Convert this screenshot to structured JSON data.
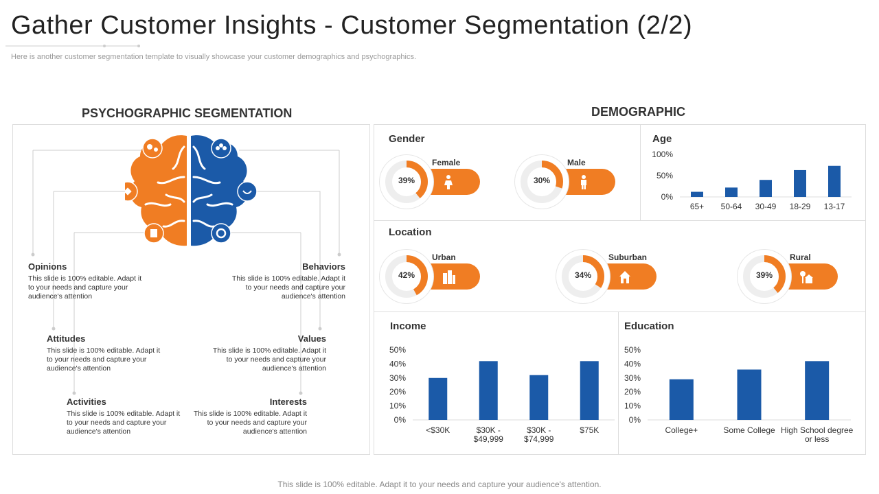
{
  "header": {
    "title": "Gather Customer Insights - Customer Segmentation (2/2)",
    "subtitle": "Here is another customer segmentation template to visually showcase your customer demographics and psychographics."
  },
  "psychographic": {
    "title": "PSYCHOGRAPHIC SEGMENTATION",
    "items": [
      {
        "name": "Opinions",
        "desc": "This slide is 100% editable. Adapt it to your needs and capture your audience's attention"
      },
      {
        "name": "Attitudes",
        "desc": "This slide is 100% editable. Adapt it to your needs and capture your audience's attention"
      },
      {
        "name": "Activities",
        "desc": "This slide is 100% editable. Adapt it to your needs and capture your audience's attention"
      },
      {
        "name": "Behaviors",
        "desc": "This slide is 100% editable. Adapt it to your needs and capture your audience's attention"
      },
      {
        "name": "Values",
        "desc": "This slide is 100% editable. Adapt it to your needs and capture your audience's attention"
      },
      {
        "name": "Interests",
        "desc": "This slide is 100% editable. Adapt it to your needs and capture your audience's attention"
      }
    ],
    "colors": {
      "left": "#f07d23",
      "right": "#1b5aa8"
    }
  },
  "demographic": {
    "title": "DEMOGRAPHIC",
    "gender": {
      "label": "Gender",
      "items": [
        {
          "name": "Female",
          "pct": "39%",
          "value": 39,
          "icon": "female-icon"
        },
        {
          "name": "Male",
          "pct": "30%",
          "value": 30,
          "icon": "male-icon"
        }
      ]
    },
    "location": {
      "label": "Location",
      "items": [
        {
          "name": "Urban",
          "pct": "42%",
          "value": 42,
          "icon": "city-icon"
        },
        {
          "name": "Suburban",
          "pct": "34%",
          "value": 34,
          "icon": "house-icon"
        },
        {
          "name": "Rural",
          "pct": "39%",
          "value": 39,
          "icon": "tree-house-icon"
        }
      ]
    },
    "accent": "#f07d23",
    "bar_color": "#1b5aa8"
  },
  "chart_data": [
    {
      "type": "bar",
      "title": "Age",
      "categories": [
        "65+",
        "50-64",
        "30-49",
        "18-29",
        "13-17"
      ],
      "values": [
        12,
        22,
        40,
        63,
        73
      ],
      "ylim": [
        0,
        100
      ],
      "yticks": [
        "100%",
        "50%",
        "0%"
      ]
    },
    {
      "type": "bar",
      "title": "Income",
      "categories": [
        "<$30K",
        "$30K - $49,999",
        "$30K - $74,999",
        "$75K"
      ],
      "values": [
        30,
        42,
        32,
        42
      ],
      "ylim": [
        0,
        50
      ],
      "yticks": [
        "50%",
        "40%",
        "30%",
        "20%",
        "10%",
        "0%"
      ]
    },
    {
      "type": "bar",
      "title": "Education",
      "categories": [
        "College+",
        "Some College",
        "High School degree or less"
      ],
      "values": [
        29,
        36,
        42
      ],
      "ylim": [
        0,
        50
      ],
      "yticks": [
        "50%",
        "40%",
        "30%",
        "20%",
        "10%",
        "0%"
      ]
    }
  ],
  "footer": {
    "text": "This slide is 100% editable. Adapt it to your needs and capture your audience's attention."
  }
}
